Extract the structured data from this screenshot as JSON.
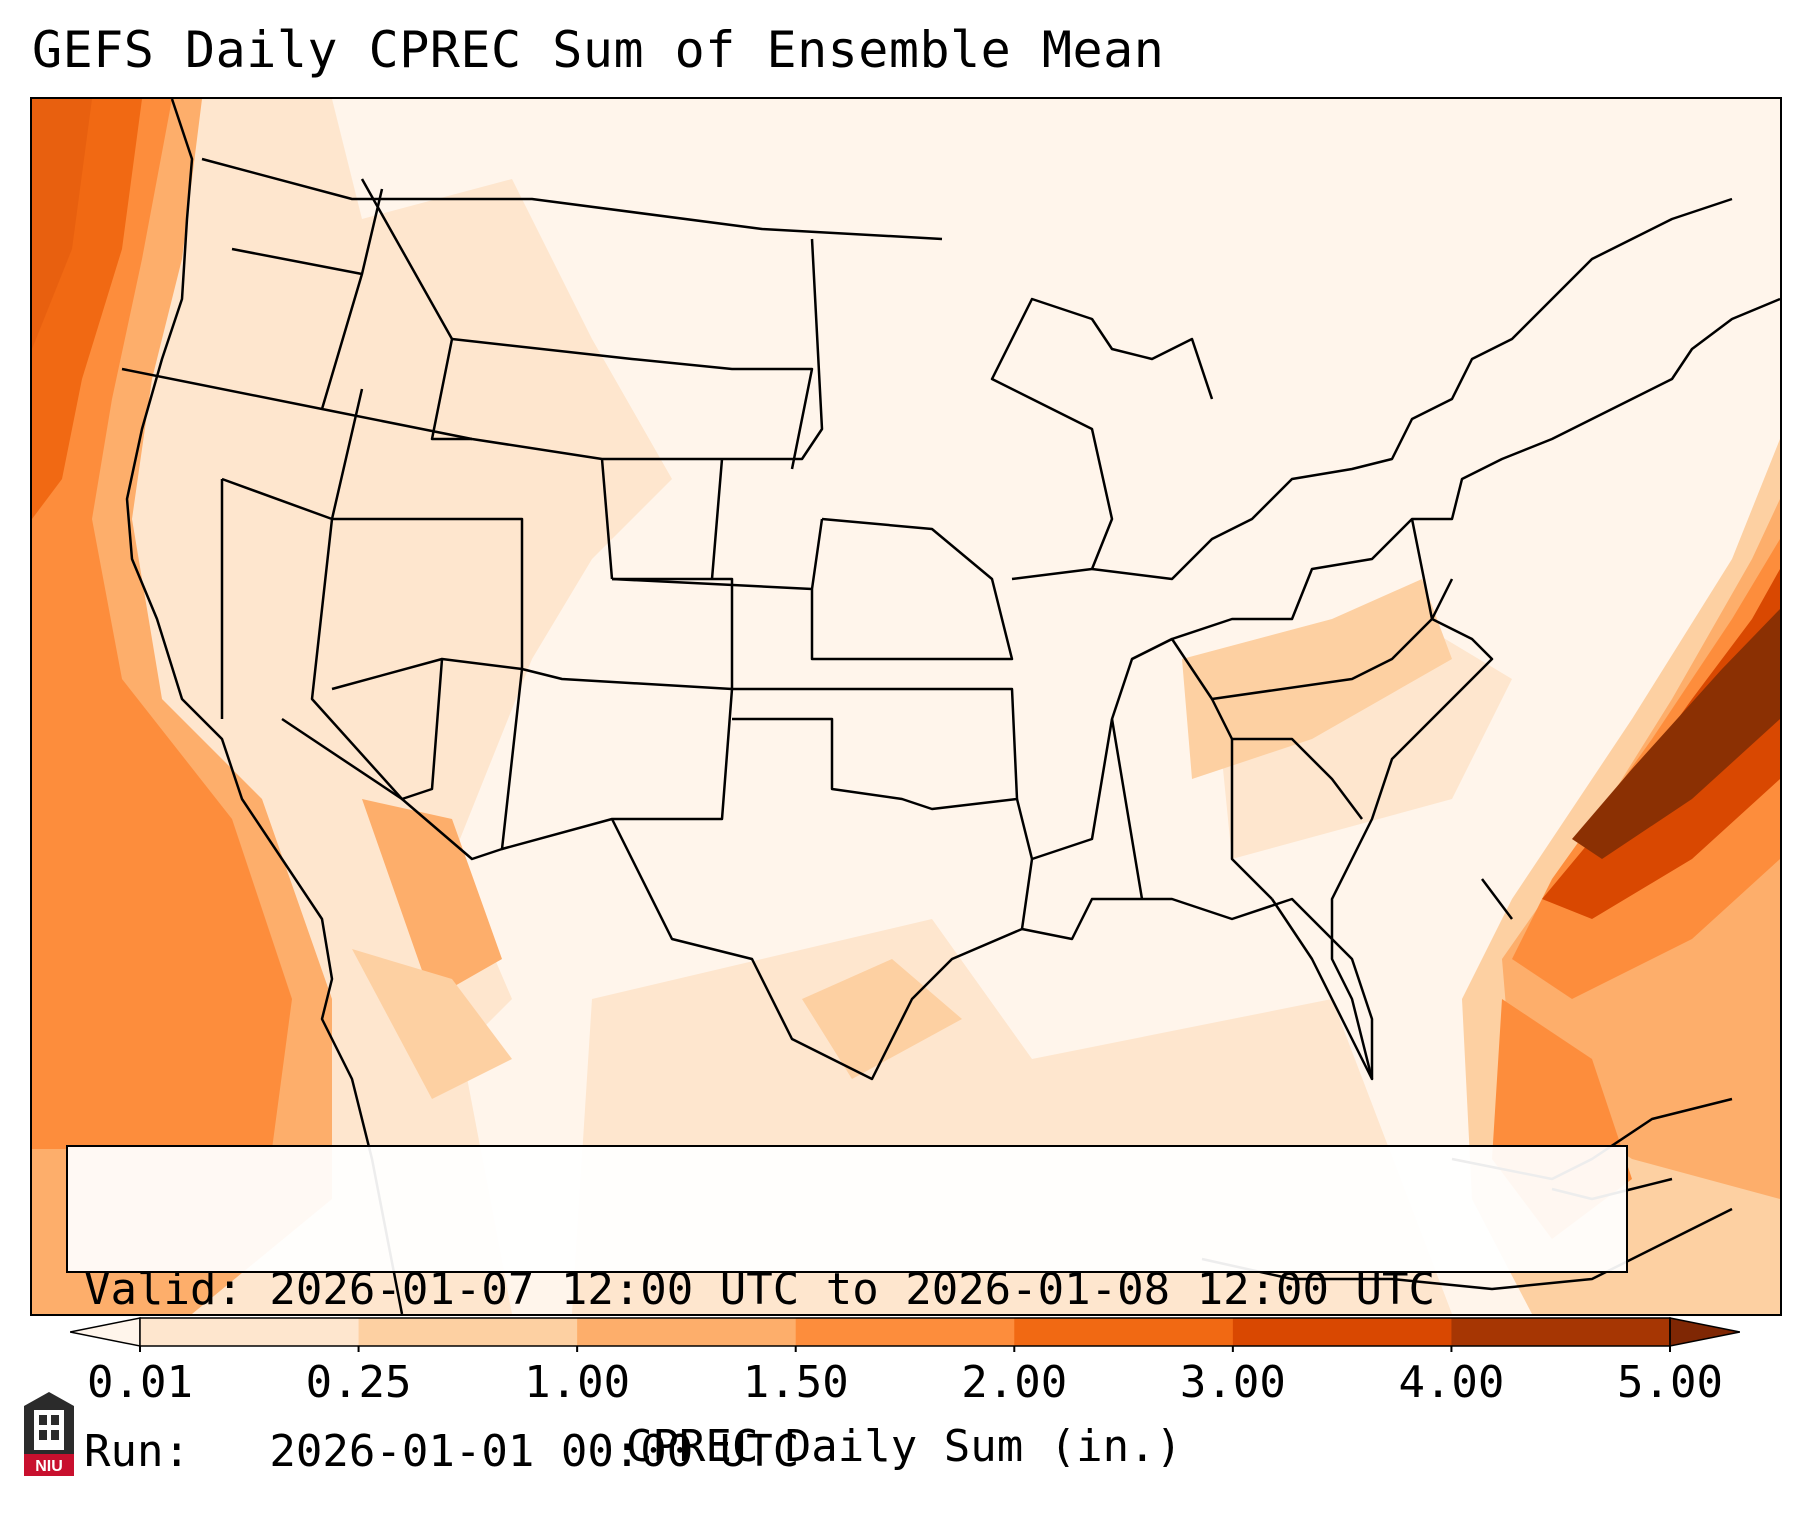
{
  "title": "GEFS Daily CPREC Sum of Ensemble Mean",
  "info": {
    "valid_line": "Valid: 2026-01-07 12:00 UTC to 2026-01-08 12:00 UTC",
    "run_line": "Run:   2026-01-01 00:00 UTC"
  },
  "colorbar": {
    "label": "CPREC Daily Sum (in.)",
    "ticks": [
      "0.01",
      "0.25",
      "1.00",
      "1.50",
      "2.00",
      "3.00",
      "4.00",
      "5.00"
    ],
    "colors": [
      "#fff5eb",
      "#fee6ce",
      "#fdd0a2",
      "#fdae6b",
      "#fd8d3c",
      "#f16913",
      "#d94801",
      "#a63603",
      "#7f2704"
    ],
    "extend": "both"
  },
  "logo": {
    "text": "NIU",
    "icon": "niu-building-icon"
  },
  "map": {
    "region": "continental-us",
    "background_color": "#fff5eb",
    "coastline_color": "#000000"
  }
}
